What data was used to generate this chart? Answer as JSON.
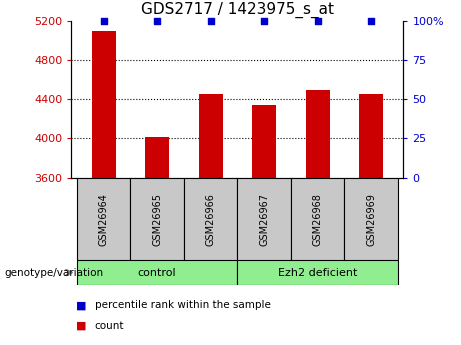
{
  "title": "GDS2717 / 1423975_s_at",
  "samples": [
    "GSM26964",
    "GSM26965",
    "GSM26966",
    "GSM26967",
    "GSM26968",
    "GSM26969"
  ],
  "counts": [
    5100,
    4010,
    4450,
    4340,
    4490,
    4455
  ],
  "percentile_ranks": [
    100,
    100,
    100,
    100,
    100,
    100
  ],
  "ylim_left": [
    3600,
    5200
  ],
  "ylim_right": [
    0,
    100
  ],
  "yticks_left": [
    3600,
    4000,
    4400,
    4800,
    5200
  ],
  "yticks_right": [
    0,
    25,
    50,
    75,
    100
  ],
  "grid_values": [
    4000,
    4400,
    4800
  ],
  "bar_color": "#cc0000",
  "percentile_color": "#0000cc",
  "bar_width": 0.45,
  "group_box_color": "#c8c8c8",
  "group_label_color": "#90ee90",
  "group_label_color2": "#50dd50",
  "xlabel_prefix": "genotype/variation",
  "legend_count_label": "count",
  "legend_percentile_label": "percentile rank within the sample",
  "title_fontsize": 11,
  "axis_label_fontsize": 8,
  "tick_fontsize": 8,
  "groups_info": [
    {
      "start": 0,
      "end": 2,
      "label": "control"
    },
    {
      "start": 3,
      "end": 5,
      "label": "Ezh2 deficient"
    }
  ]
}
